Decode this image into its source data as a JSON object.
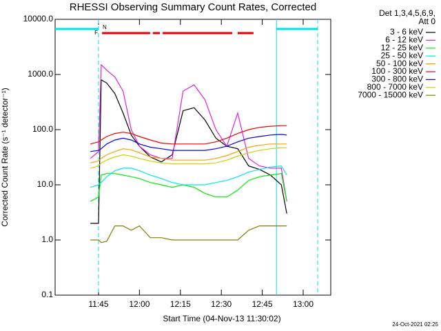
{
  "chart_data": {
    "type": "line",
    "title": "RHESSI Observing Summary Count Rates, Corrected",
    "x_label": "Start Time (04-Nov-13 11:30:02)",
    "y_label": "Corrected Count Rate (s⁻¹ detector⁻¹)",
    "legend_title": [
      "Det 1,3,4,5,6,9,",
      "Att 0"
    ],
    "footer": "24-Oct-2021 02:25",
    "log_y": true,
    "xlim": [
      -0.9,
      100.1
    ],
    "ylim": [
      0.1,
      10000
    ],
    "xticks": [
      {
        "value": 15,
        "label": "11:45"
      },
      {
        "value": 30,
        "label": "12:00"
      },
      {
        "value": 45,
        "label": "12:15"
      },
      {
        "value": 60,
        "label": "12:30"
      },
      {
        "value": 75,
        "label": "12:45"
      },
      {
        "value": 90,
        "label": "13:00"
      }
    ],
    "yticks": [
      0.1,
      {
        "value": 1,
        "label": "1.0"
      },
      {
        "value": 10,
        "label": "10.0"
      },
      {
        "value": 100,
        "label": "100.0"
      },
      {
        "value": 1000,
        "label": "1000.0"
      },
      {
        "value": 10000,
        "label": "10000.0"
      }
    ],
    "vlines": [
      {
        "x": 15.0,
        "style": "dashed"
      },
      {
        "x": 80.2,
        "style": "solid"
      },
      {
        "x": 95.3,
        "style": "dashed"
      }
    ],
    "night_bars": {
      "label": "N",
      "color": "#00e0e0",
      "intervals": [
        [
          -0.9,
          15.0
        ],
        [
          80.2,
          95.3
        ]
      ]
    },
    "flare_bars": {
      "label": "F",
      "color": "#e00000",
      "intervals": [
        [
          16.3,
          33.9
        ],
        [
          34.9,
          37.5
        ],
        [
          38.5,
          64.0
        ],
        [
          66.0,
          71.8
        ]
      ]
    },
    "x": [
      12,
      15,
      16,
      18,
      21,
      24,
      27,
      30,
      34,
      38,
      42,
      46,
      50,
      54,
      58,
      62,
      66,
      70,
      74,
      78,
      82,
      84
    ],
    "series": [
      {
        "name": "3 - 6 keV",
        "color": "#000000",
        "values": [
          2,
          2,
          800,
          700,
          450,
          200,
          80,
          50,
          32,
          26,
          35,
          220,
          250,
          150,
          70,
          50,
          45,
          22,
          19,
          15,
          10,
          3
        ]
      },
      {
        "name": "6 - 12 keV",
        "color": "#e020e0",
        "values": [
          30,
          40,
          1500,
          1200,
          900,
          500,
          100,
          50,
          35,
          30,
          30,
          500,
          650,
          350,
          100,
          50,
          200,
          30,
          22,
          20,
          20,
          5
        ]
      },
      {
        "name": "12 - 25 keV",
        "color": "#00ee00",
        "values": [
          5,
          6,
          15,
          16,
          16,
          15,
          14,
          13,
          11,
          10,
          9,
          10,
          9,
          7,
          6,
          6,
          8,
          12,
          14,
          15,
          16,
          5
        ]
      },
      {
        "name": "25 - 50 keV",
        "color": "#00e8e8",
        "values": [
          9,
          10,
          11,
          14,
          18,
          20,
          20,
          18,
          15,
          13,
          11,
          10,
          10,
          10,
          11,
          12,
          14,
          17,
          19,
          21,
          22,
          15
        ]
      },
      {
        "name": "50 - 100 keV",
        "color": "#ffa000",
        "values": [
          25,
          27,
          30,
          35,
          40,
          45,
          43,
          38,
          32,
          30,
          28,
          28,
          28,
          28,
          30,
          34,
          40,
          48,
          52,
          55,
          55,
          55
        ]
      },
      {
        "name": "100 - 300 keV",
        "color": "#ee0000",
        "values": [
          55,
          60,
          65,
          75,
          85,
          90,
          85,
          75,
          65,
          57,
          55,
          55,
          55,
          55,
          60,
          70,
          85,
          100,
          110,
          115,
          118,
          118
        ]
      },
      {
        "name": "300 - 800 keV",
        "color": "#0000ee",
        "values": [
          40,
          42,
          45,
          55,
          65,
          70,
          65,
          55,
          48,
          45,
          42,
          42,
          42,
          42,
          45,
          50,
          60,
          70,
          75,
          80,
          82,
          80
        ]
      },
      {
        "name": "800 - 7000 keV",
        "color": "#d0d000",
        "values": [
          20,
          22,
          25,
          28,
          32,
          35,
          33,
          30,
          27,
          25,
          24,
          24,
          24,
          24,
          25,
          28,
          33,
          38,
          42,
          45,
          47,
          47
        ]
      },
      {
        "name": "7000 - 15000 keV",
        "color": "#808000",
        "values": [
          1,
          1,
          0.9,
          0.95,
          1.8,
          1.8,
          1.5,
          1.8,
          1.1,
          1.1,
          1,
          1,
          1,
          1,
          1,
          1,
          1,
          1.5,
          1.8,
          1.8,
          1.8,
          1.8
        ]
      }
    ]
  }
}
